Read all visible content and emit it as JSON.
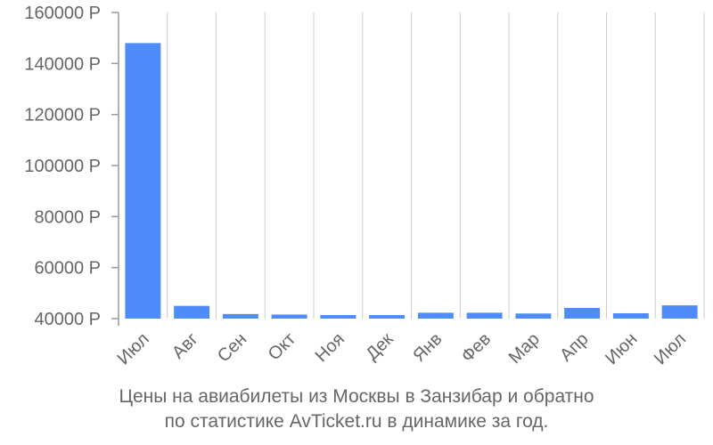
{
  "chart_data": {
    "type": "bar",
    "title": "",
    "subtitle": "",
    "caption": [
      "Цены на авиабилеты из Москвы в Занзибар и обратно",
      "по статистике AvTicket.ru в динамике за год."
    ],
    "xlabel": "",
    "ylabel": "",
    "currency_suffix": "Р",
    "categories": [
      "Июл",
      "Авг",
      "Сен",
      "Окт",
      "Ноя",
      "Дек",
      "Янв",
      "Фев",
      "Мар",
      "Апр",
      "Июн",
      "Июл"
    ],
    "series": [
      {
        "values": [
          148000,
          45000,
          41800,
          41600,
          41400,
          41400,
          42300,
          42300,
          42000,
          44200,
          42100,
          45200
        ],
        "color": "#4f8bf9"
      }
    ],
    "ylim": [
      40000,
      160000
    ],
    "yticks": [
      40000,
      60000,
      80000,
      100000,
      120000,
      140000,
      160000
    ],
    "ytick_labels": [
      "40000 Р",
      "60000 Р",
      "80000 Р",
      "100000 Р",
      "120000 Р",
      "140000 Р",
      "160000 Р"
    ],
    "grid": {
      "vertical": true,
      "horizontal": false,
      "color": "#cccccc"
    },
    "legend": "none"
  }
}
